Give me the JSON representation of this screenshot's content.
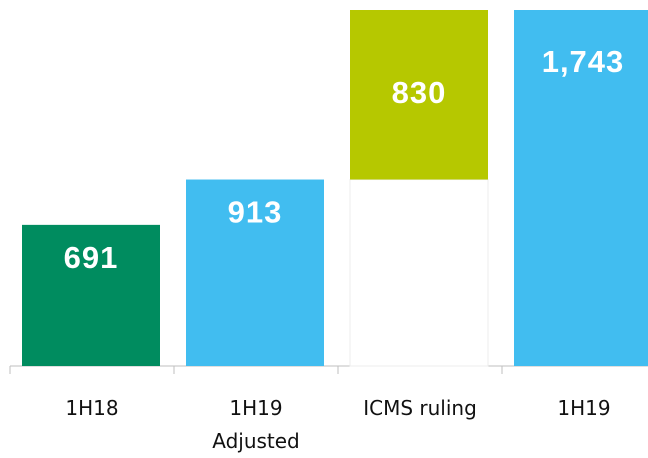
{
  "chart_data": {
    "type": "waterfall",
    "categories": [
      "1H18",
      "1H19\nAdjusted",
      "ICMS ruling",
      "1H19"
    ],
    "values": [
      691,
      913,
      830,
      1743
    ],
    "value_labels": [
      "691",
      "913",
      "830",
      "1,743"
    ],
    "measure": [
      "absolute",
      "absolute",
      "relative",
      "total"
    ],
    "colors": [
      "#008c5f",
      "#41bdf0",
      "#b6c800",
      "#41bdf0"
    ]
  }
}
